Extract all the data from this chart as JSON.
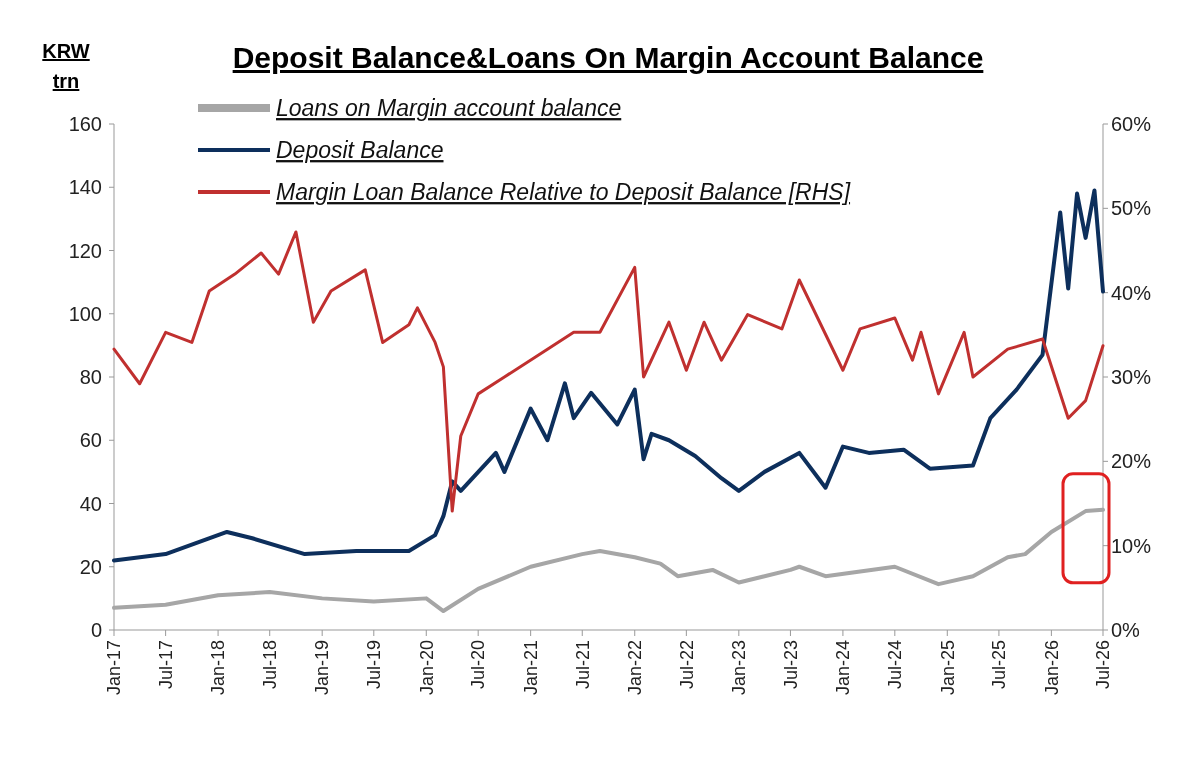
{
  "chart_data": {
    "type": "line",
    "title": "Deposit Balance&Loans On Margin Account Balance",
    "ylabel": "KRW trn",
    "xlim": [
      "2017-01",
      "2026-07"
    ],
    "xticks": [
      {
        "value": "2017-01",
        "label": "Jan-17"
      },
      {
        "value": "2017-07",
        "label": "Jul-17"
      },
      {
        "value": "2018-01",
        "label": "Jan-18"
      },
      {
        "value": "2018-07",
        "label": "Jul-18"
      },
      {
        "value": "2019-01",
        "label": "Jan-19"
      },
      {
        "value": "2019-07",
        "label": "Jul-19"
      },
      {
        "value": "2020-01",
        "label": "Jan-20"
      },
      {
        "value": "2020-07",
        "label": "Jul-20"
      },
      {
        "value": "2021-01",
        "label": "Jan-21"
      },
      {
        "value": "2021-07",
        "label": "Jul-21"
      },
      {
        "value": "2022-01",
        "label": "Jan-22"
      },
      {
        "value": "2022-07",
        "label": "Jul-22"
      },
      {
        "value": "2023-01",
        "label": "Jan-23"
      },
      {
        "value": "2023-07",
        "label": "Jul-23"
      },
      {
        "value": "2024-01",
        "label": "Jan-24"
      },
      {
        "value": "2024-07",
        "label": "Jul-24"
      },
      {
        "value": "2025-01",
        "label": "Jan-25"
      },
      {
        "value": "2025-07",
        "label": "Jul-25"
      },
      {
        "value": "2026-01",
        "label": "Jan-26"
      },
      {
        "value": "2026-07",
        "label": "Jul-26"
      }
    ],
    "ylim": [
      0,
      160
    ],
    "yticks": [
      0,
      20,
      40,
      60,
      80,
      100,
      120,
      140,
      160
    ],
    "y2lim": [
      0,
      60
    ],
    "y2ticks": [
      {
        "value": 0,
        "label": "0%"
      },
      {
        "value": 10,
        "label": "10%"
      },
      {
        "value": 20,
        "label": "20%"
      },
      {
        "value": 30,
        "label": "30%"
      },
      {
        "value": 40,
        "label": "40%"
      },
      {
        "value": 50,
        "label": "50%"
      },
      {
        "value": 60,
        "label": "60%"
      }
    ],
    "legend": "top left",
    "grid": false,
    "marker": "none",
    "line_style": "solid",
    "series": [
      {
        "name": "Loans on Margin account balance",
        "color": "#a6a6a6",
        "x": [
          "2017-01",
          "2017-07",
          "2018-01",
          "2018-07",
          "2019-01",
          "2019-07",
          "2020-01",
          "2020-03",
          "2020-07",
          "2021-01",
          "2021-07",
          "2021-09",
          "2022-01",
          "2022-04",
          "2022-06",
          "2022-10",
          "2023-01",
          "2023-07",
          "2023-08",
          "2023-11",
          "2024-07",
          "2024-12",
          "2025-04",
          "2025-08",
          "2025-10",
          "2026-01",
          "2026-05",
          "2026-07"
        ],
        "values": [
          7,
          8,
          11,
          12,
          10,
          9,
          10,
          6,
          13,
          20,
          24,
          25,
          23,
          21,
          17,
          19,
          15,
          19,
          20,
          17,
          20,
          14.5,
          17,
          23,
          24,
          31,
          37.6,
          38
        ]
      },
      {
        "name": "Deposit Balance",
        "color": "#0d2f5c",
        "x": [
          "2017-01",
          "2017-07",
          "2018-02",
          "2018-05",
          "2018-11",
          "2019-05",
          "2019-11",
          "2020-02",
          "2020-03",
          "2020-04",
          "2020-05",
          "2020-09",
          "2020-10",
          "2021-01",
          "2021-03",
          "2021-05",
          "2021-06",
          "2021-08",
          "2021-11",
          "2022-01",
          "2022-02",
          "2022-03",
          "2022-05",
          "2022-08",
          "2022-11",
          "2023-01",
          "2023-04",
          "2023-08",
          "2023-11",
          "2024-01",
          "2024-04",
          "2024-08",
          "2024-11",
          "2025-04",
          "2025-06",
          "2025-09",
          "2025-12",
          "2026-02",
          "2026-03",
          "2026-04",
          "2026-05",
          "2026-06",
          "2026-07"
        ],
        "values": [
          22,
          24,
          31,
          29,
          24,
          25,
          25,
          30,
          36,
          47,
          44,
          56,
          50,
          70,
          60,
          78,
          67,
          75,
          65,
          76,
          54,
          62,
          60,
          55,
          48,
          44,
          50,
          56,
          45,
          58,
          56,
          57,
          51,
          52,
          67,
          76,
          87,
          132,
          108,
          138,
          124,
          139,
          107
        ]
      },
      {
        "name": "Margin Loan Balance Relative to Deposit Balance [RHS]",
        "color": "#c0302f",
        "axis": "y2",
        "x": [
          "2017-01",
          "2017-04",
          "2017-07",
          "2017-10",
          "2017-12",
          "2018-03",
          "2018-06",
          "2018-08",
          "2018-10",
          "2018-12",
          "2019-02",
          "2019-06",
          "2019-08",
          "2019-11",
          "2019-12",
          "2020-02",
          "2020-03",
          "2020-04",
          "2020-05",
          "2020-07",
          "2020-10",
          "2021-03",
          "2021-06",
          "2021-09",
          "2022-01",
          "2022-02",
          "2022-05",
          "2022-07",
          "2022-09",
          "2022-11",
          "2023-02",
          "2023-06",
          "2023-08",
          "2024-01",
          "2024-03",
          "2024-07",
          "2024-09",
          "2024-10",
          "2024-12",
          "2025-03",
          "2025-04",
          "2025-08",
          "2025-12",
          "2026-03",
          "2026-05",
          "2026-07"
        ],
        "values": [
          33.3,
          29.2,
          35.3,
          34.1,
          40.2,
          42.2,
          44.7,
          42.2,
          47.2,
          36.5,
          40.2,
          42.7,
          34.1,
          36.2,
          38.2,
          34.1,
          31.2,
          14.1,
          23,
          28,
          30,
          33.3,
          35.3,
          35.3,
          43,
          30,
          36.5,
          30.8,
          36.5,
          32,
          37.4,
          35.7,
          41.5,
          30.8,
          35.7,
          37,
          32,
          35.3,
          28,
          35.3,
          30,
          33.3,
          34.5,
          25.1,
          27.2,
          33.7
        ]
      }
    ]
  }
}
